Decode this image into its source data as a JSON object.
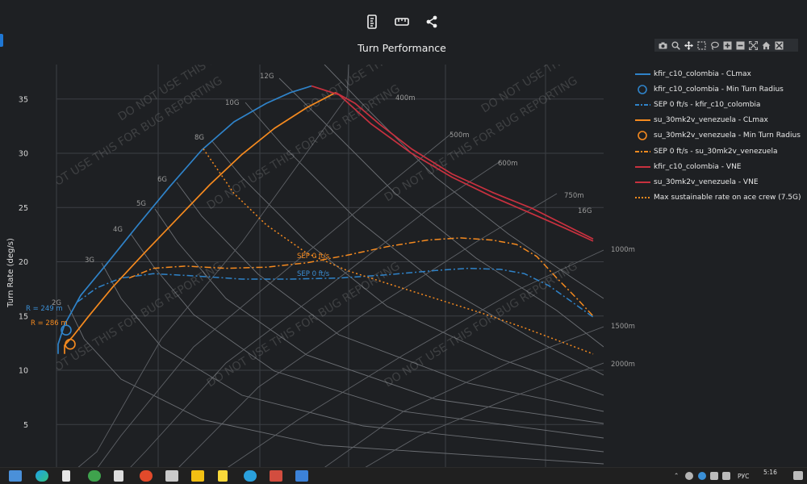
{
  "toolbar": {
    "icons": [
      "ruler-vertical-icon",
      "ruler-horizontal-icon",
      "share-icon"
    ]
  },
  "modebar": {
    "icons": [
      "camera-icon",
      "zoom-icon",
      "pan-icon",
      "box-select-icon",
      "lasso-icon",
      "zoom-in-icon",
      "zoom-out-icon",
      "autoscale-icon",
      "home-icon",
      "spikelines-icon"
    ]
  },
  "chart_data": {
    "type": "line",
    "title": "Turn Performance",
    "xlabel": "",
    "ylabel": "Turn Rate (deg/s)",
    "ylim": [
      0,
      38
    ],
    "y_ticks": [
      5,
      10,
      15,
      20,
      25,
      30,
      35
    ],
    "grid": true,
    "legend_position": "right",
    "watermark": "DO NOT USE THIS FOR BUG REPORTING",
    "g_lines": [
      "2G",
      "3G",
      "4G",
      "5G",
      "6G",
      "8G",
      "10G",
      "12G",
      "16G"
    ],
    "radius_lines": [
      "400m",
      "500m",
      "600m",
      "750m",
      "1000m",
      "1500m",
      "2000m"
    ],
    "annotations": [
      {
        "text": "R = 249 m",
        "color": "#3b8fd6"
      },
      {
        "text": "R = 286 m",
        "color": "#f58a1f"
      },
      {
        "text": "SEP 0 ft/s",
        "color": "#f58a1f"
      },
      {
        "text": "SEP 0 ft/s",
        "color": "#3b8fd6"
      }
    ],
    "series": [
      {
        "name": "kfir_c10_colombia - CLmax",
        "color": "#2f83c9",
        "style": "solid",
        "points": [
          [
            72,
            11.5
          ],
          [
            72,
            12.4
          ],
          [
            80,
            14.2
          ],
          [
            100,
            16.9
          ],
          [
            130,
            19.6
          ],
          [
            170,
            23.3
          ],
          [
            210,
            26.9
          ],
          [
            250,
            30.3
          ],
          [
            290,
            32.9
          ],
          [
            330,
            34.6
          ],
          [
            360,
            35.6
          ],
          [
            386,
            36.2
          ]
        ]
      },
      {
        "name": "kfir_c10_colombia - Min Turn Radius",
        "color": "#2f83c9",
        "style": "marker",
        "points": [
          [
            82,
            13.7
          ]
        ]
      },
      {
        "name": "SEP 0 ft/s - kfir_c10_colombia",
        "color": "#2f83c9",
        "style": "dashdot",
        "points": [
          [
            96,
            16.3
          ],
          [
            120,
            17.6
          ],
          [
            150,
            18.5
          ],
          [
            190,
            18.9
          ],
          [
            240,
            18.7
          ],
          [
            300,
            18.4
          ],
          [
            360,
            18.4
          ],
          [
            420,
            18.5
          ],
          [
            480,
            18.8
          ],
          [
            540,
            19.2
          ],
          [
            580,
            19.4
          ],
          [
            620,
            19.3
          ],
          [
            650,
            18.9
          ],
          [
            680,
            17.8
          ],
          [
            705,
            16.5
          ],
          [
            735,
            14.9
          ]
        ]
      },
      {
        "name": "su_30mk2v_venezuela - CLmax",
        "color": "#f58a1f",
        "style": "solid",
        "points": [
          [
            80,
            11.5
          ],
          [
            80,
            12.3
          ],
          [
            90,
            13.1
          ],
          [
            110,
            15.0
          ],
          [
            140,
            17.7
          ],
          [
            180,
            20.9
          ],
          [
            220,
            24.0
          ],
          [
            260,
            27.1
          ],
          [
            300,
            29.9
          ],
          [
            340,
            32.3
          ],
          [
            380,
            34.2
          ],
          [
            416,
            35.6
          ]
        ]
      },
      {
        "name": "su_30mk2v_venezuela - Min Turn Radius",
        "color": "#f58a1f",
        "style": "marker",
        "points": [
          [
            87,
            12.4
          ]
        ]
      },
      {
        "name": "SEP 0 ft/s - su_30mk2v_venezuela",
        "color": "#f58a1f",
        "style": "dashdot",
        "points": [
          [
            160,
            18.5
          ],
          [
            190,
            19.4
          ],
          [
            230,
            19.6
          ],
          [
            280,
            19.4
          ],
          [
            330,
            19.5
          ],
          [
            380,
            19.9
          ],
          [
            430,
            20.6
          ],
          [
            480,
            21.4
          ],
          [
            530,
            22.0
          ],
          [
            570,
            22.2
          ],
          [
            610,
            22.0
          ],
          [
            640,
            21.6
          ],
          [
            665,
            20.5
          ],
          [
            690,
            18.5
          ],
          [
            715,
            16.6
          ],
          [
            735,
            15.0
          ]
        ]
      },
      {
        "name": "kfir_c10_colombia - VNE",
        "color": "#c8313f",
        "style": "solid",
        "points": [
          [
            386,
            36.2
          ],
          [
            420,
            35.4
          ],
          [
            460,
            32.7
          ],
          [
            510,
            30.0
          ],
          [
            560,
            27.8
          ],
          [
            610,
            26.0
          ],
          [
            660,
            24.4
          ],
          [
            700,
            23.1
          ],
          [
            735,
            21.9
          ]
        ]
      },
      {
        "name": "su_30mk2v_venezuela - VNE",
        "color": "#c8313f",
        "style": "solid",
        "points": [
          [
            416,
            35.6
          ],
          [
            440,
            34.6
          ],
          [
            470,
            32.7
          ],
          [
            510,
            30.4
          ],
          [
            560,
            28.1
          ],
          [
            610,
            26.4
          ],
          [
            660,
            24.9
          ],
          [
            700,
            23.4
          ],
          [
            735,
            22.1
          ]
        ]
      },
      {
        "name": "Max sustainable rate on ace crew (7.5G)",
        "color": "#f58a1f",
        "style": "dotted",
        "points": [
          [
            252,
            30.4
          ],
          [
            290,
            26.3
          ],
          [
            330,
            23.4
          ],
          [
            380,
            20.8
          ],
          [
            430,
            19.2
          ],
          [
            480,
            18.0
          ],
          [
            540,
            16.6
          ],
          [
            600,
            15.2
          ],
          [
            650,
            13.9
          ],
          [
            700,
            12.5
          ],
          [
            735,
            11.5
          ]
        ]
      }
    ]
  },
  "legend": {
    "items": [
      {
        "label": "kfir_c10_colombia - CLmax",
        "color": "#2f83c9",
        "style": "solid"
      },
      {
        "label": "kfir_c10_colombia - Min Turn Radius",
        "color": "#2f83c9",
        "style": "circle"
      },
      {
        "label": "SEP 0 ft/s - kfir_c10_colombia",
        "color": "#2f83c9",
        "style": "dashdot"
      },
      {
        "label": "su_30mk2v_venezuela - CLmax",
        "color": "#f58a1f",
        "style": "solid"
      },
      {
        "label": "su_30mk2v_venezuela - Min Turn Radius",
        "color": "#f58a1f",
        "style": "circle"
      },
      {
        "label": "SEP 0 ft/s - su_30mk2v_venezuela",
        "color": "#f58a1f",
        "style": "dashdot"
      },
      {
        "label": "kfir_c10_colombia - VNE",
        "color": "#c8313f",
        "style": "solid"
      },
      {
        "label": "su_30mk2v_venezuela - VNE",
        "color": "#c8313f",
        "style": "solid"
      },
      {
        "label": "Max sustainable rate on ace crew (7.5G)",
        "color": "#f58a1f",
        "style": "dotted"
      }
    ]
  },
  "taskbar": {
    "lang": "РУС",
    "time": "5:16"
  }
}
